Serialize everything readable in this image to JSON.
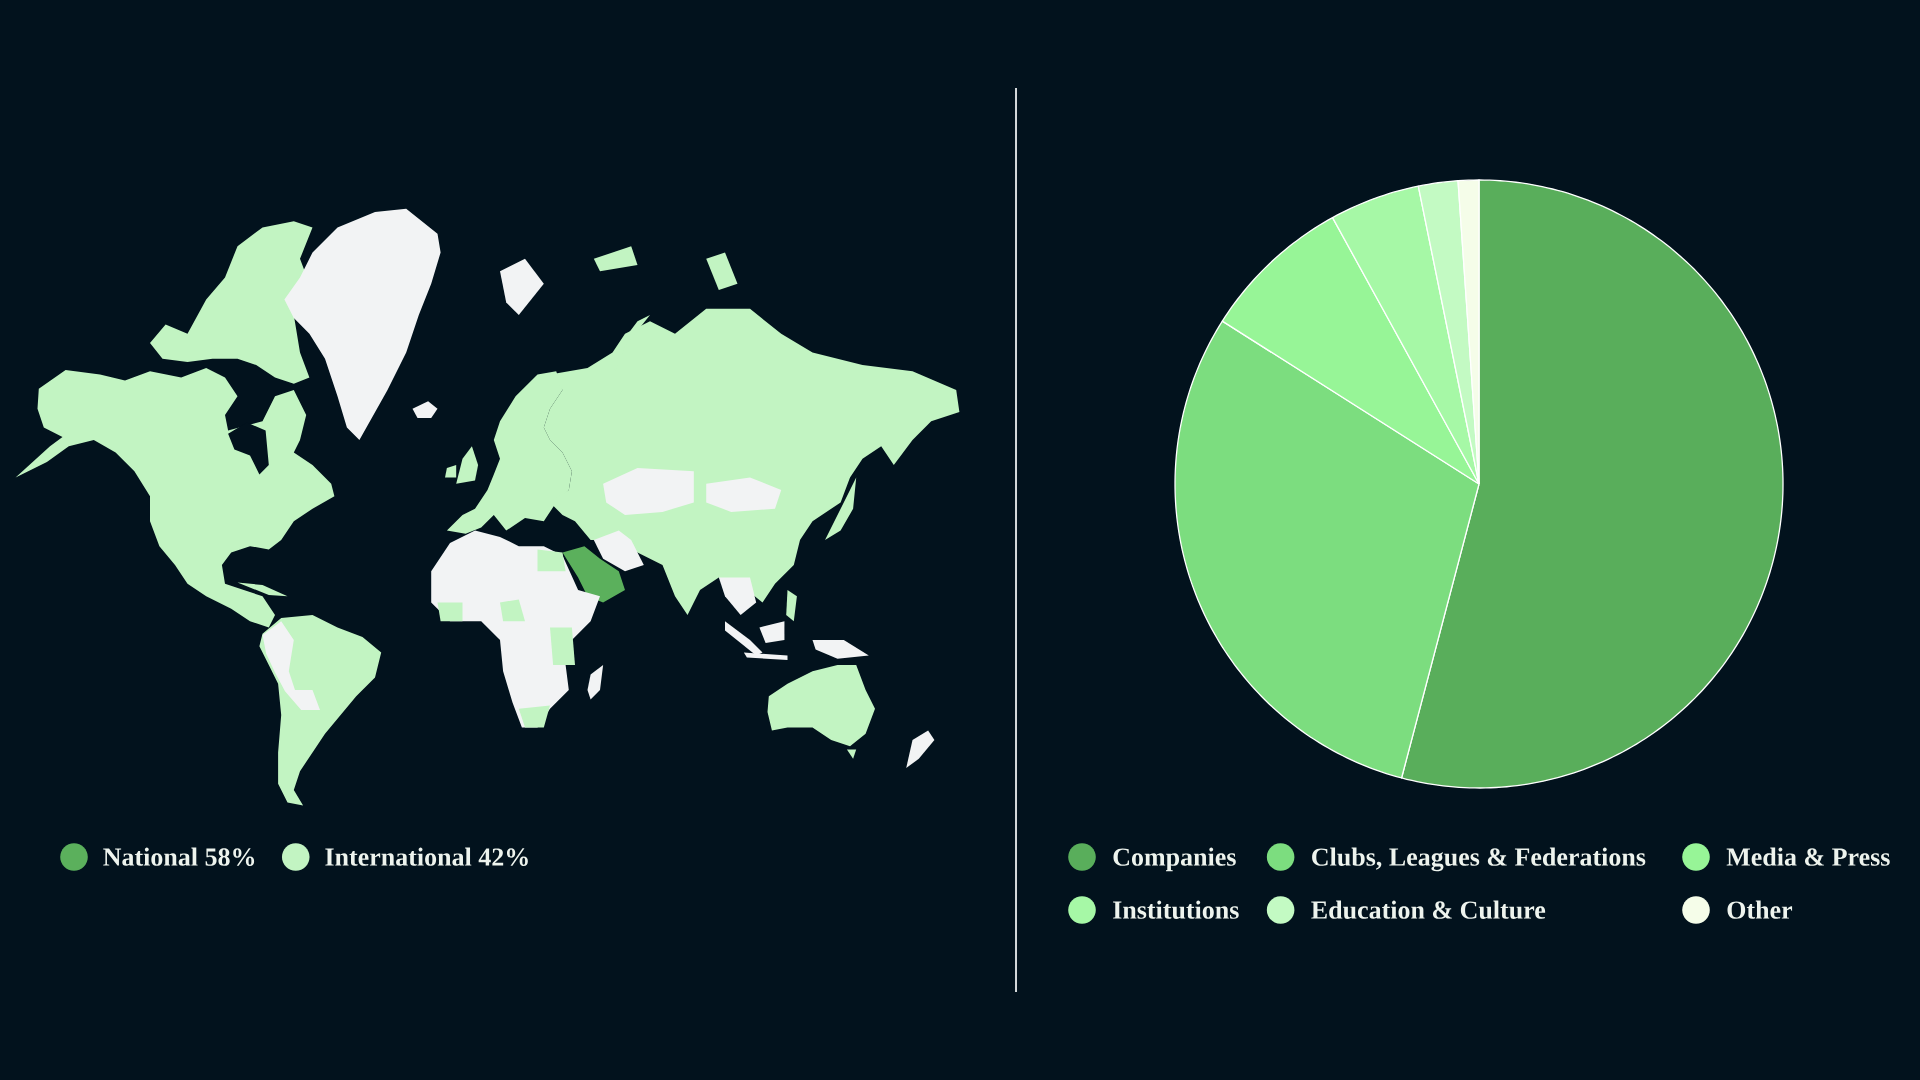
{
  "chart_data": [
    {
      "type": "other",
      "categories": [
        "National 58%",
        "International 42%"
      ],
      "colors": [
        "#5bb05c",
        "#c2f4c2"
      ]
    },
    {
      "type": "pie",
      "categories": [
        "Companies",
        "Clubs, Leagues & Federations",
        "Media & Press",
        "Institutions",
        "Education & Culture",
        "Other"
      ],
      "values": [
        54.1,
        29.9,
        8.0,
        4.8,
        2.1,
        1.1
      ],
      "colors": [
        "#59ae5b",
        "#7cdd7f",
        "#97f597",
        "#a6f8a6",
        "#c3fac3",
        "#f5fde9"
      ],
      "legend": "bottom"
    }
  ]
}
